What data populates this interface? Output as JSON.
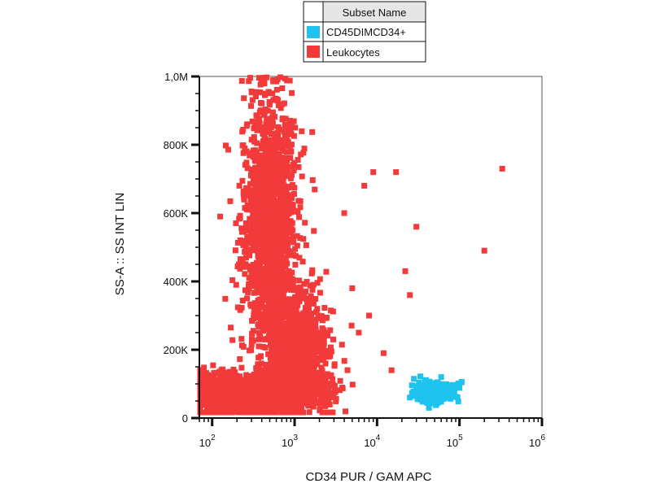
{
  "chart_data": {
    "type": "scatter",
    "xlabel": "CD34 PUR / GAM APC",
    "ylabel": "SS-A :: SS INT LIN",
    "x_scale": "log",
    "xlim": [
      70,
      1000000
    ],
    "ylim": [
      0,
      1000000
    ],
    "x_ticks": [
      {
        "value": 100,
        "base": "10",
        "exp": "2"
      },
      {
        "value": 1000,
        "base": "10",
        "exp": "3"
      },
      {
        "value": 10000,
        "base": "10",
        "exp": "4"
      },
      {
        "value": 100000,
        "base": "10",
        "exp": "5"
      },
      {
        "value": 1000000,
        "base": "10",
        "exp": "6"
      }
    ],
    "y_ticks": [
      {
        "value": 0,
        "label": "0"
      },
      {
        "value": 200000,
        "label": "200K"
      },
      {
        "value": 400000,
        "label": "400K"
      },
      {
        "value": 600000,
        "label": "600K"
      },
      {
        "value": 800000,
        "label": "800K"
      },
      {
        "value": 1000000,
        "label": "1,0M"
      }
    ],
    "grid": false,
    "legend": {
      "placement": "top-center",
      "header": "Subset Name",
      "entries": [
        {
          "name": "CD45DIMCD34+",
          "color": "#1ec3f0"
        },
        {
          "name": "Leukocytes",
          "color": "#f23a3a"
        }
      ]
    },
    "series": [
      {
        "name": "Leukocytes",
        "color": "#f23a3a",
        "clusters": [
          {
            "x_center": 500,
            "y_center": 560000,
            "x_spread_log10": 0.16,
            "y_spread": 190000,
            "count": 1500
          },
          {
            "x_center": 1100,
            "y_center": 210000,
            "x_spread_log10": 0.17,
            "y_spread": 75000,
            "count": 900
          },
          {
            "x_center": 160,
            "y_center": 70000,
            "x_spread_log10": 0.25,
            "y_spread": 28000,
            "count": 1000
          },
          {
            "x_center": 800,
            "y_center": 80000,
            "x_spread_log10": 0.3,
            "y_spread": 30000,
            "count": 600
          }
        ],
        "outliers": [
          [
            330000,
            730000
          ],
          [
            200000,
            490000
          ],
          [
            30000,
            560000
          ],
          [
            22000,
            430000
          ],
          [
            17000,
            720000
          ],
          [
            9000,
            720000
          ],
          [
            8000,
            300000
          ],
          [
            5000,
            380000
          ],
          [
            12000,
            190000
          ],
          [
            25000,
            360000
          ],
          [
            6000,
            250000
          ],
          [
            4000,
            600000
          ],
          [
            15000,
            140000
          ],
          [
            7000,
            680000
          ]
        ]
      },
      {
        "name": "CD45DIMCD34+",
        "color": "#1ec3f0",
        "clusters": [
          {
            "x_center": 50000,
            "y_center": 75000,
            "x_spread_log10": 0.13,
            "y_spread": 15000,
            "count": 260
          }
        ],
        "outliers": [
          [
            28000,
            115000
          ],
          [
            60000,
            120000
          ],
          [
            95000,
            90000
          ],
          [
            25000,
            60000
          ]
        ]
      }
    ]
  }
}
